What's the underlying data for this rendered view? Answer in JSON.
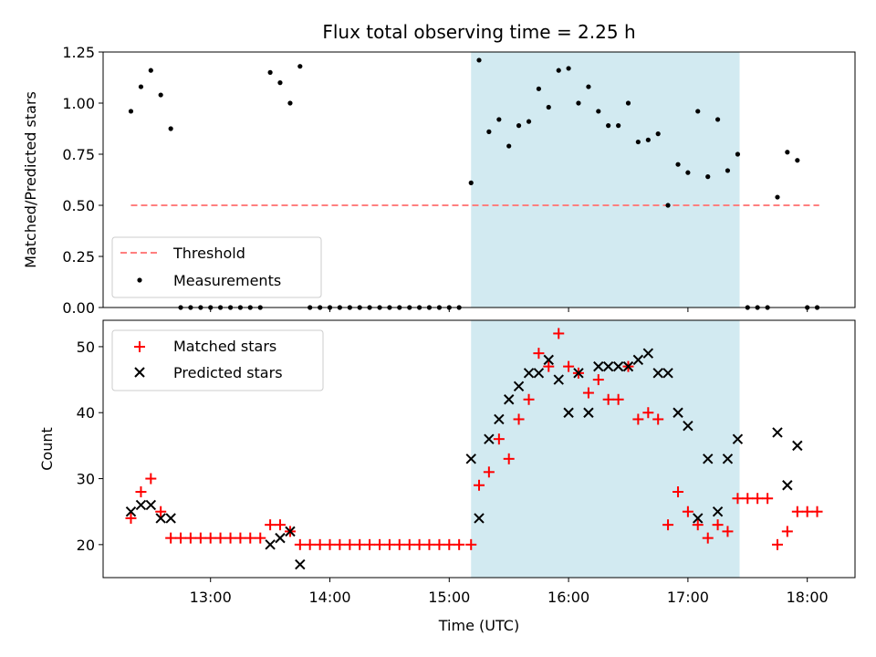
{
  "chart_data": [
    {
      "type": "scatter",
      "title": "Flux total observing time = 2.25 h",
      "xlabel": "",
      "ylabel": "Matched/Predicted stars",
      "ylim": [
        0,
        1.25
      ],
      "xlim": [
        12.1,
        18.4
      ],
      "yticks": [
        0.0,
        0.25,
        0.5,
        0.75,
        1.0,
        1.25
      ],
      "ytick_labels": [
        "0.00",
        "0.25",
        "0.50",
        "0.75",
        "1.00",
        "1.25"
      ],
      "highlight_span": [
        15.183,
        17.433
      ],
      "highlight_color": "#add8e6",
      "threshold": {
        "name": "Threshold",
        "y": 0.5,
        "x_range": [
          12.333,
          18.1
        ],
        "color": "#ff7f7f"
      },
      "legend": [
        "Threshold",
        "Measurements"
      ],
      "legend_position": "lower-left",
      "series": [
        {
          "name": "Measurements",
          "color": "#000000",
          "x": [
            12.333,
            12.417,
            12.5,
            12.583,
            12.667,
            12.75,
            12.833,
            12.917,
            13.0,
            13.083,
            13.167,
            13.25,
            13.333,
            13.417,
            13.5,
            13.583,
            13.667,
            13.75,
            13.833,
            13.917,
            14.0,
            14.083,
            14.167,
            14.25,
            14.333,
            14.417,
            14.5,
            14.583,
            14.667,
            14.75,
            14.833,
            14.917,
            15.0,
            15.083,
            15.183,
            15.25,
            15.333,
            15.417,
            15.5,
            15.583,
            15.667,
            15.75,
            15.833,
            15.917,
            16.0,
            16.083,
            16.167,
            16.25,
            16.333,
            16.417,
            16.5,
            16.583,
            16.667,
            16.75,
            16.833,
            16.917,
            17.0,
            17.083,
            17.167,
            17.25,
            17.333,
            17.417,
            17.5,
            17.583,
            17.667,
            17.75,
            17.833,
            17.917,
            18.0,
            18.083
          ],
          "y": [
            0.96,
            1.08,
            1.16,
            1.04,
            0.875,
            0,
            0,
            0,
            0,
            0,
            0,
            0,
            0,
            0,
            1.15,
            1.1,
            1.0,
            1.18,
            0,
            0,
            0,
            0,
            0,
            0,
            0,
            0,
            0,
            0,
            0,
            0,
            0,
            0,
            0,
            0,
            0.61,
            1.21,
            0.86,
            0.92,
            0.79,
            0.89,
            0.91,
            1.07,
            0.98,
            1.16,
            1.17,
            1.0,
            1.08,
            0.96,
            0.89,
            0.89,
            1.0,
            0.81,
            0.82,
            0.85,
            0.5,
            0.7,
            0.66,
            0.96,
            0.64,
            0.92,
            0.67,
            0.75,
            0,
            0,
            0,
            0.54,
            0.76,
            0.72,
            0,
            0
          ]
        }
      ]
    },
    {
      "type": "scatter",
      "xlabel": "Time (UTC)",
      "ylabel": "Count",
      "ylim": [
        15,
        54
      ],
      "xlim": [
        12.1,
        18.4
      ],
      "yticks": [
        20,
        30,
        40,
        50
      ],
      "ytick_labels": [
        "20",
        "30",
        "40",
        "50"
      ],
      "xticks": [
        13,
        14,
        15,
        16,
        17,
        18
      ],
      "xtick_labels": [
        "13:00",
        "14:00",
        "15:00",
        "16:00",
        "17:00",
        "18:00"
      ],
      "highlight_span": [
        15.183,
        17.433
      ],
      "highlight_color": "#add8e6",
      "legend": [
        "Matched stars",
        "Predicted stars"
      ],
      "legend_position": "upper-left",
      "series": [
        {
          "name": "Matched stars",
          "marker": "plus",
          "color": "#ff0000",
          "x": [
            12.333,
            12.417,
            12.5,
            12.583,
            12.667,
            12.75,
            12.833,
            12.917,
            13.0,
            13.083,
            13.167,
            13.25,
            13.333,
            13.417,
            13.5,
            13.583,
            13.667,
            13.75,
            13.833,
            13.917,
            14.0,
            14.083,
            14.167,
            14.25,
            14.333,
            14.417,
            14.5,
            14.583,
            14.667,
            14.75,
            14.833,
            14.917,
            15.0,
            15.083,
            15.183,
            15.25,
            15.333,
            15.417,
            15.5,
            15.583,
            15.667,
            15.75,
            15.833,
            15.917,
            16.0,
            16.083,
            16.167,
            16.25,
            16.333,
            16.417,
            16.5,
            16.583,
            16.667,
            16.75,
            16.833,
            16.917,
            17.0,
            17.083,
            17.167,
            17.25,
            17.333,
            17.417,
            17.5,
            17.583,
            17.667,
            17.75,
            17.833,
            17.917,
            18.0,
            18.083
          ],
          "y": [
            24,
            28,
            30,
            25,
            21,
            21,
            21,
            21,
            21,
            21,
            21,
            21,
            21,
            21,
            23,
            23,
            22,
            20,
            20,
            20,
            20,
            20,
            20,
            20,
            20,
            20,
            20,
            20,
            20,
            20,
            20,
            20,
            20,
            20,
            20,
            29,
            31,
            36,
            33,
            39,
            42,
            49,
            47,
            52,
            47,
            46,
            43,
            45,
            42,
            42,
            47,
            39,
            40,
            39,
            23,
            28,
            25,
            23,
            21,
            23,
            22,
            27,
            27,
            27,
            27,
            20,
            22,
            25,
            25,
            25
          ]
        },
        {
          "name": "Predicted stars",
          "marker": "x",
          "color": "#000000",
          "x": [
            12.333,
            12.417,
            12.5,
            12.583,
            12.667,
            13.5,
            13.583,
            13.667,
            13.75,
            15.183,
            15.25,
            15.333,
            15.417,
            15.5,
            15.583,
            15.667,
            15.75,
            15.833,
            15.917,
            16.0,
            16.083,
            16.167,
            16.25,
            16.333,
            16.417,
            16.5,
            16.583,
            16.667,
            16.75,
            16.833,
            16.917,
            17.0,
            17.083,
            17.167,
            17.25,
            17.333,
            17.417,
            17.75,
            17.833,
            17.917
          ],
          "y": [
            25,
            26,
            26,
            24,
            24,
            20,
            21,
            22,
            17,
            33,
            24,
            36,
            39,
            42,
            44,
            46,
            46,
            48,
            45,
            40,
            46,
            40,
            47,
            47,
            47,
            47,
            48,
            49,
            46,
            46,
            40,
            38,
            24,
            33,
            25,
            33,
            36,
            37,
            29,
            35
          ]
        }
      ]
    }
  ]
}
